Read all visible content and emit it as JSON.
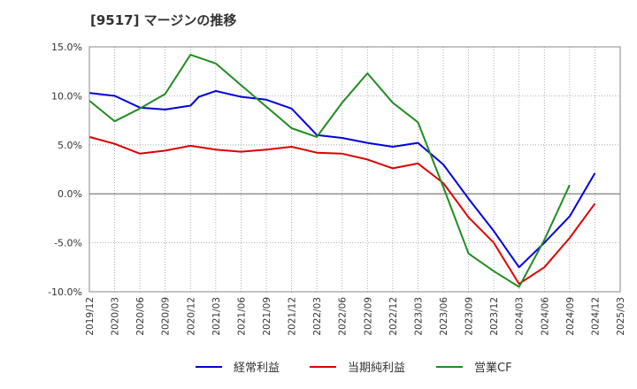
{
  "chart_data": {
    "type": "line",
    "title": "[9517]  マージンの推移",
    "xlabel": "",
    "ylabel": "",
    "ylim": [
      -10,
      15
    ],
    "y_ticks": [
      "15.0%",
      "10.0%",
      "5.0%",
      "0.0%",
      "-5.0%",
      "-10.0%"
    ],
    "y_tick_values": [
      15,
      10,
      5,
      0,
      -5,
      -10
    ],
    "categories": [
      "2019/12",
      "2020/03",
      "2020/06",
      "2020/09",
      "2020/12",
      "2021/03",
      "2021/06",
      "2021/09",
      "2021/12",
      "2022/03",
      "2022/06",
      "2022/09",
      "2022/12",
      "2023/03",
      "2023/06",
      "2023/09",
      "2023/12",
      "2024/03",
      "2024/06",
      "2024/09",
      "2024/12",
      "2025/03"
    ],
    "grid": true,
    "legend_position": "bottom",
    "series": [
      {
        "name": "経常利益",
        "color": "#0000dd",
        "x": [
          "2019/12",
          "2020/03",
          "2020/06",
          "2020/09",
          "2020/12",
          "2021/01",
          "2021/03",
          "2021/06",
          "2021/09",
          "2021/12",
          "2022/03",
          "2022/06",
          "2022/09",
          "2022/12",
          "2023/03",
          "2023/06",
          "2023/09",
          "2023/12",
          "2024/03",
          "2024/06",
          "2024/09",
          "2024/12"
        ],
        "values": [
          10.3,
          10.0,
          8.8,
          8.6,
          9.0,
          9.9,
          10.5,
          9.9,
          9.6,
          8.7,
          6.0,
          5.7,
          5.2,
          4.8,
          5.2,
          3.0,
          -0.5,
          -3.8,
          -7.5,
          -5.0,
          -2.3,
          2.1
        ]
      },
      {
        "name": "当期純利益",
        "color": "#dd0000",
        "x": [
          "2019/12",
          "2020/03",
          "2020/06",
          "2020/09",
          "2020/12",
          "2021/03",
          "2021/06",
          "2021/09",
          "2021/12",
          "2022/03",
          "2022/06",
          "2022/09",
          "2022/12",
          "2023/03",
          "2023/06",
          "2023/09",
          "2023/12",
          "2024/03",
          "2024/06",
          "2024/09",
          "2024/12"
        ],
        "values": [
          5.8,
          5.1,
          4.1,
          4.4,
          4.9,
          4.5,
          4.3,
          4.5,
          4.8,
          4.2,
          4.1,
          3.5,
          2.6,
          3.1,
          1.1,
          -2.4,
          -5.0,
          -9.2,
          -7.5,
          -4.5,
          -1.0
        ]
      },
      {
        "name": "営業CF",
        "color": "#228B22",
        "x": [
          "2019/12",
          "2020/03",
          "2020/06",
          "2020/09",
          "2020/12",
          "2021/03",
          "2021/06",
          "2021/09",
          "2021/12",
          "2022/03",
          "2022/06",
          "2022/09",
          "2022/12",
          "2023/03",
          "2023/06",
          "2023/09",
          "2023/12",
          "2024/03",
          "2024/06",
          "2024/09"
        ],
        "values": [
          9.5,
          7.4,
          8.7,
          10.2,
          14.2,
          13.3,
          11.1,
          8.9,
          6.7,
          5.8,
          9.3,
          12.3,
          9.3,
          7.3,
          0.7,
          -6.1,
          -7.9,
          -9.5,
          -4.7,
          0.9
        ]
      }
    ]
  }
}
